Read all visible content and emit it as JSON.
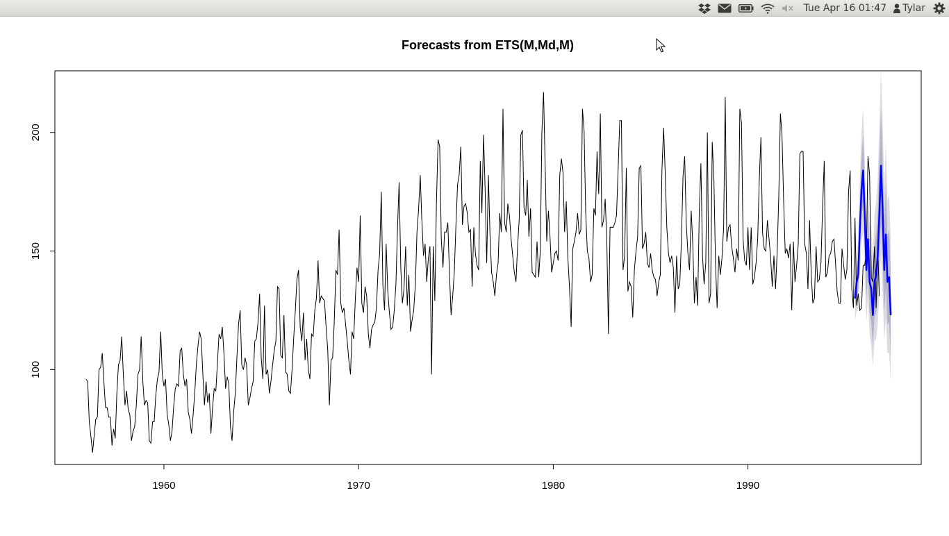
{
  "topbar": {
    "icons": [
      "dropbox-icon",
      "mail-icon",
      "battery-icon",
      "wifi-icon",
      "volume-muted-icon"
    ],
    "clock": "Tue Apr 16 01:47",
    "user": "Tylar",
    "settings_icon": "gear-icon"
  },
  "colors": {
    "history": "#000000",
    "forecast": "#0000ff",
    "interval_80": "#b3b3cc",
    "interval_95": "#dbdbe0"
  },
  "chart_data": {
    "type": "line",
    "title": "Forecasts from ETS(M,Md,M)",
    "xlabel": "",
    "ylabel": "",
    "xlim": [
      1954.4,
      1998.9
    ],
    "ylim": [
      60,
      226
    ],
    "xticks": [
      1960,
      1970,
      1980,
      1990
    ],
    "yticks": [
      100,
      150,
      200
    ],
    "grid": false,
    "history": {
      "start": 1956.0,
      "frequency": 12,
      "values": [
        96,
        95,
        78,
        72,
        65,
        72,
        79,
        80,
        100,
        101,
        107,
        95,
        84,
        84,
        80,
        80,
        68,
        75,
        71,
        90,
        102,
        104,
        114,
        98,
        85,
        91,
        83,
        81,
        70,
        74,
        76,
        85,
        98,
        100,
        114,
        95,
        85,
        87,
        86,
        70,
        69,
        78,
        78,
        89,
        96,
        99,
        116,
        98,
        93,
        96,
        81,
        77,
        70,
        74,
        84,
        92,
        94,
        93,
        108,
        109,
        98,
        93,
        96,
        82,
        79,
        73,
        81,
        90,
        102,
        110,
        116,
        113,
        98,
        85,
        95,
        86,
        90,
        73,
        84,
        92,
        91,
        103,
        115,
        113,
        118,
        107,
        92,
        97,
        94,
        76,
        70,
        82,
        90,
        105,
        119,
        125,
        102,
        100,
        105,
        102,
        85,
        88,
        92,
        95,
        112,
        113,
        120,
        132,
        105,
        96,
        127,
        98,
        100,
        90,
        95,
        102,
        108,
        112,
        135,
        134,
        106,
        105,
        123,
        99,
        98,
        91,
        90,
        100,
        113,
        125,
        138,
        142,
        118,
        112,
        124,
        104,
        113,
        100,
        96,
        115,
        114,
        125,
        130,
        146,
        128,
        131,
        130,
        129,
        118,
        108,
        85,
        104,
        105,
        120,
        142,
        140,
        159,
        128,
        124,
        126,
        119,
        112,
        104,
        98,
        116,
        113,
        130,
        143,
        137,
        165,
        128,
        124,
        135,
        131,
        115,
        109,
        117,
        119,
        120,
        126,
        142,
        149,
        175,
        135,
        125,
        153,
        133,
        124,
        117,
        118,
        125,
        136,
        160,
        179,
        143,
        128,
        134,
        152,
        127,
        140,
        116,
        121,
        125,
        136,
        158,
        168,
        182,
        163,
        148,
        153,
        137,
        147,
        152,
        98,
        152,
        129,
        170,
        197,
        194,
        155,
        143,
        158,
        158,
        162,
        141,
        123,
        131,
        141,
        161,
        178,
        182,
        194,
        161,
        169,
        170,
        166,
        158,
        159,
        135,
        160,
        149,
        144,
        142,
        188,
        166,
        199,
        176,
        145,
        182,
        157,
        141,
        137,
        131,
        140,
        145,
        166,
        158,
        210,
        162,
        158,
        170,
        165,
        155,
        148,
        141,
        137,
        152,
        163,
        199,
        201,
        168,
        165,
        180,
        156,
        168,
        141,
        140,
        139,
        154,
        139,
        150,
        200,
        217,
        186,
        154,
        167,
        156,
        141,
        145,
        149,
        150,
        146,
        182,
        189,
        183,
        158,
        171,
        147,
        135,
        118,
        151,
        154,
        158,
        166,
        157,
        159,
        210,
        201,
        166,
        150,
        147,
        137,
        140,
        168,
        165,
        192,
        174,
        208,
        160,
        163,
        172,
        155,
        115,
        160,
        160,
        160,
        162,
        165,
        185,
        205,
        205,
        142,
        148,
        185,
        133,
        137,
        135,
        122,
        142,
        150,
        156,
        185,
        186,
        151,
        153,
        158,
        145,
        143,
        149,
        142,
        139,
        138,
        131,
        137,
        140,
        184,
        202,
        183,
        160,
        149,
        145,
        148,
        143,
        124,
        148,
        134,
        136,
        155,
        182,
        190,
        161,
        149,
        142,
        167,
        153,
        128,
        139,
        127,
        166,
        187,
        148,
        136,
        145,
        200,
        128,
        132,
        196,
        180,
        145,
        126,
        148,
        140,
        147,
        160,
        215,
        154,
        160,
        161,
        152,
        147,
        141,
        151,
        146,
        210,
        204,
        155,
        146,
        144,
        160,
        142,
        160,
        136,
        139,
        145,
        155,
        180,
        198,
        158,
        151,
        150,
        163,
        155,
        147,
        135,
        148,
        134,
        149,
        173,
        208,
        199,
        171,
        149,
        151,
        147,
        153,
        125,
        154,
        137,
        144,
        153,
        191,
        192,
        192,
        153,
        149,
        134,
        163,
        140,
        128,
        130,
        152,
        137,
        138,
        145,
        168,
        188,
        139,
        141,
        148,
        149,
        154,
        155,
        145,
        133,
        128,
        128,
        151,
        144,
        138,
        142,
        175,
        184,
        134,
        126,
        164,
        127,
        132,
        125,
        126,
        144,
        144,
        150,
        190,
        182,
        139,
        137,
        152,
        126,
        151,
        131
      ]
    },
    "forecast": {
      "start": 1995.5,
      "frequency": 12,
      "mean": [
        130,
        137,
        140,
        160,
        176,
        184,
        165,
        142,
        155,
        137,
        134,
        123,
        137,
        140,
        148,
        166,
        186,
        168,
        142,
        157,
        137,
        139,
        123
      ],
      "lo80": [
        126,
        131,
        133,
        150,
        164,
        170,
        152,
        130,
        141,
        124,
        120,
        110,
        122,
        124,
        131,
        146,
        163,
        147,
        124,
        136,
        119,
        120,
        106
      ],
      "hi80": [
        134,
        143,
        148,
        170,
        189,
        199,
        179,
        155,
        170,
        151,
        149,
        137,
        153,
        157,
        166,
        187,
        210,
        190,
        161,
        178,
        156,
        159,
        141
      ],
      "lo95": [
        121,
        125,
        126,
        141,
        154,
        158,
        141,
        120,
        131,
        115,
        110,
        101,
        112,
        113,
        119,
        133,
        149,
        133,
        112,
        122,
        107,
        107,
        95
      ],
      "hi95": [
        140,
        150,
        155,
        180,
        200,
        210,
        190,
        165,
        181,
        162,
        160,
        148,
        165,
        171,
        180,
        203,
        226,
        207,
        176,
        196,
        171,
        174,
        155
      ]
    }
  }
}
